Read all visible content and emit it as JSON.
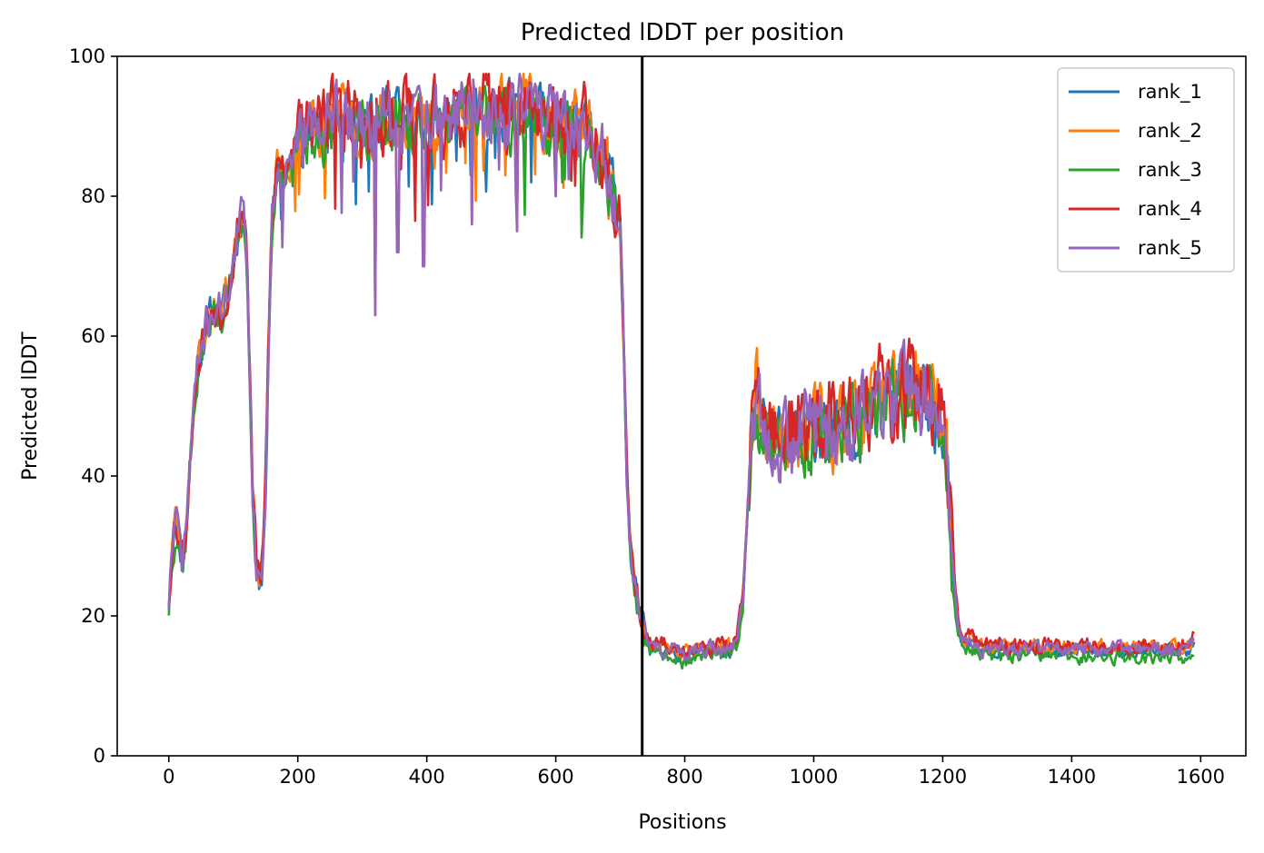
{
  "chart_data": {
    "type": "line",
    "title": "Predicted lDDT per position",
    "xlabel": "Positions",
    "ylabel": "Predicted lDDT",
    "xlim": [
      -80,
      1670
    ],
    "ylim": [
      0,
      100
    ],
    "xticks": [
      0,
      200,
      400,
      600,
      800,
      1000,
      1200,
      1400,
      1600
    ],
    "yticks": [
      0,
      20,
      40,
      60,
      80,
      100
    ],
    "vline": 734,
    "grid": false,
    "legend_position": "top-right",
    "series": [
      {
        "name": "rank_1",
        "color": "#1f77b4",
        "offset": 0.0,
        "jitter": 2.4,
        "seed": 11
      },
      {
        "name": "rank_2",
        "color": "#ff7f0e",
        "offset": 0.6,
        "jitter": 2.6,
        "seed": 23
      },
      {
        "name": "rank_3",
        "color": "#2ca02c",
        "offset": -0.8,
        "jitter": 2.6,
        "seed": 37
      },
      {
        "name": "rank_4",
        "color": "#d62728",
        "offset": 0.8,
        "jitter": 3.2,
        "seed": 53
      },
      {
        "name": "rank_5",
        "color": "#9467bd",
        "offset": 0.2,
        "jitter": 2.8,
        "seed": 71
      }
    ],
    "profile": {
      "x": [
        0,
        5,
        10,
        15,
        20,
        25,
        30,
        35,
        40,
        50,
        60,
        70,
        80,
        90,
        100,
        110,
        115,
        120,
        125,
        130,
        135,
        140,
        145,
        150,
        155,
        160,
        165,
        170,
        180,
        190,
        200,
        210,
        220,
        240,
        260,
        280,
        300,
        320,
        340,
        360,
        380,
        400,
        420,
        440,
        460,
        480,
        500,
        520,
        540,
        560,
        580,
        600,
        620,
        640,
        660,
        670,
        680,
        690,
        700,
        705,
        710,
        715,
        720,
        725,
        730,
        735,
        740,
        750,
        780,
        800,
        820,
        850,
        870,
        880,
        890,
        900,
        905,
        910,
        920,
        940,
        960,
        980,
        1000,
        1020,
        1040,
        1060,
        1080,
        1100,
        1120,
        1140,
        1160,
        1180,
        1190,
        1200,
        1205,
        1210,
        1215,
        1220,
        1225,
        1230,
        1240,
        1250,
        1260,
        1280,
        1300,
        1350,
        1400,
        1450,
        1500,
        1550,
        1580,
        1590
      ],
      "y": [
        22,
        30,
        33,
        32,
        28,
        30,
        38,
        45,
        52,
        58,
        62,
        64,
        63,
        66,
        70,
        76,
        78,
        74,
        58,
        38,
        28,
        25,
        26,
        38,
        60,
        76,
        82,
        84,
        84,
        85,
        88,
        89,
        90,
        90,
        91,
        91,
        90,
        90,
        91,
        91,
        91,
        90,
        91,
        91,
        92,
        92,
        92,
        92,
        92,
        92,
        91,
        91,
        90,
        90,
        88,
        86,
        83,
        80,
        75,
        60,
        40,
        30,
        26,
        23,
        20,
        19,
        16,
        15,
        15,
        14,
        15,
        15,
        15,
        16,
        22,
        40,
        48,
        52,
        48,
        45,
        46,
        46,
        47,
        46,
        47,
        48,
        49,
        50,
        51,
        52,
        52,
        50,
        49,
        48,
        45,
        35,
        28,
        22,
        18,
        16,
        16,
        16,
        15,
        15,
        15,
        15,
        15,
        15,
        15,
        15,
        15,
        16
      ]
    },
    "spikes": [
      {
        "x": 320,
        "y": 63
      },
      {
        "x": 395,
        "y": 70
      },
      {
        "x": 355,
        "y": 72
      },
      {
        "x": 470,
        "y": 76
      },
      {
        "x": 540,
        "y": 75
      },
      {
        "x": 600,
        "y": 80
      }
    ]
  }
}
